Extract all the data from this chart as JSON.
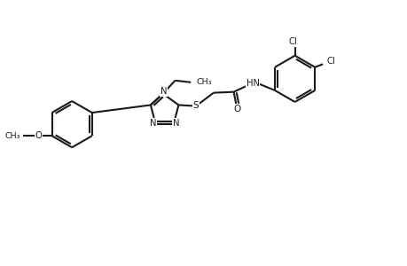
{
  "bg_color": "#ffffff",
  "line_color": "#1a1a1a",
  "line_width": 1.5,
  "fig_width": 4.6,
  "fig_height": 3.0,
  "dpi": 100,
  "xlim": [
    0,
    46
  ],
  "ylim": [
    0,
    30
  ]
}
